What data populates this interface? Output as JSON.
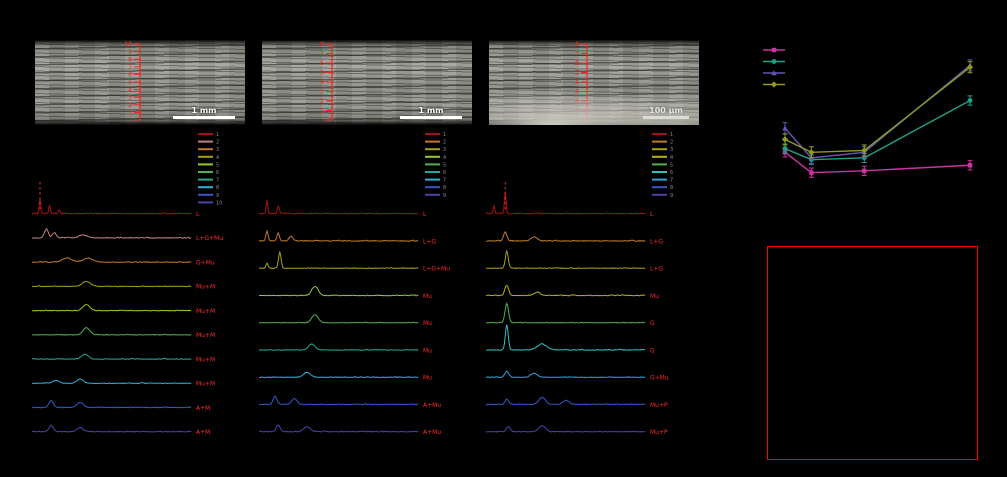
{
  "figure": {
    "background": "#000000",
    "micrographs": [
      {
        "id": "a",
        "scale_bar": "1 mm",
        "ruler_numbers": [
          "10",
          "9",
          "8",
          "7",
          "6",
          "5",
          "4",
          "3",
          "2",
          "1"
        ]
      },
      {
        "id": "b",
        "scale_bar": "1 mm",
        "ruler_numbers": [
          "8",
          "7",
          "6",
          "5",
          "4",
          "3",
          "2",
          "1"
        ]
      },
      {
        "id": "c",
        "scale_bar": "100 μm",
        "ruler_numbers": [
          "8",
          "7",
          "6",
          "5",
          "4",
          "3",
          "2",
          "1"
        ]
      }
    ],
    "spectra_panels": [
      {
        "id": "a",
        "legend_labels": [
          "1",
          "2",
          "3",
          "4",
          "5",
          "6",
          "7",
          "8",
          "9",
          "10"
        ],
        "traces": [
          {
            "color": "#a01414",
            "label": "L",
            "noise": 1.7,
            "marker_line": 0.05,
            "peaks": [
              [
                0.05,
                15,
                0.005
              ],
              [
                0.11,
                8,
                0.005
              ],
              [
                0.17,
                4,
                0.005
              ]
            ]
          },
          {
            "color": "#c08080",
            "label": "L+G+Mu",
            "noise": 1.4,
            "peaks": [
              [
                0.09,
                9,
                0.012
              ],
              [
                0.14,
                5,
                0.012
              ],
              [
                0.32,
                3,
                0.025
              ]
            ]
          },
          {
            "color": "#c07830",
            "label": "G+Mu",
            "noise": 1.2,
            "peaks": [
              [
                0.22,
                4,
                0.03
              ],
              [
                0.35,
                4,
                0.03
              ]
            ]
          },
          {
            "color": "#a8a018",
            "label": "Mu+M",
            "noise": 1.1,
            "peaks": [
              [
                0.34,
                5,
                0.025
              ]
            ]
          },
          {
            "color": "#9ac832",
            "label": "Mu+M",
            "noise": 1.1,
            "peaks": [
              [
                0.34,
                6,
                0.022
              ]
            ]
          },
          {
            "color": "#50b050",
            "label": "Mu+M",
            "noise": 1.1,
            "peaks": [
              [
                0.34,
                7,
                0.02
              ]
            ]
          },
          {
            "color": "#28a890",
            "label": "Mu+M",
            "noise": 1.1,
            "peaks": [
              [
                0.33,
                5,
                0.02
              ]
            ]
          },
          {
            "color": "#30b0d8",
            "label": "Mu+M",
            "noise": 1.1,
            "peaks": [
              [
                0.15,
                3,
                0.02
              ],
              [
                0.3,
                4,
                0.02
              ]
            ]
          },
          {
            "color": "#3858c8",
            "label": "A+M",
            "noise": 1.3,
            "peaks": [
              [
                0.12,
                7,
                0.014
              ],
              [
                0.3,
                5,
                0.02
              ]
            ]
          },
          {
            "color": "#5040a8",
            "label": "A+M",
            "noise": 1.3,
            "peaks": [
              [
                0.12,
                6,
                0.014
              ],
              [
                0.3,
                4,
                0.02
              ]
            ]
          }
        ]
      },
      {
        "id": "b",
        "legend_labels": [
          "1",
          "2",
          "3",
          "4",
          "5",
          "6",
          "7",
          "8",
          "9"
        ],
        "traces": [
          {
            "color": "#a01414",
            "label": "L",
            "noise": 1.7,
            "peaks": [
              [
                0.05,
                13,
                0.005
              ],
              [
                0.12,
                7,
                0.006
              ]
            ]
          },
          {
            "color": "#c07830",
            "label": "L+G",
            "noise": 1.4,
            "peaks": [
              [
                0.05,
                10,
                0.007
              ],
              [
                0.12,
                8,
                0.008
              ],
              [
                0.2,
                5,
                0.012
              ]
            ]
          },
          {
            "color": "#a8a018",
            "label": "L+G+Mu",
            "noise": 1.2,
            "peaks": [
              [
                0.05,
                5,
                0.006
              ],
              [
                0.13,
                16,
                0.008
              ]
            ]
          },
          {
            "color": "#9ac832",
            "label": "Mu",
            "noise": 1.1,
            "peaks": [
              [
                0.35,
                9,
                0.02
              ]
            ]
          },
          {
            "color": "#50b050",
            "label": "Mu",
            "noise": 1.1,
            "peaks": [
              [
                0.35,
                8,
                0.02
              ]
            ]
          },
          {
            "color": "#28a890",
            "label": "Mu",
            "noise": 1.1,
            "peaks": [
              [
                0.33,
                6,
                0.02
              ]
            ]
          },
          {
            "color": "#30b0d8",
            "label": "Mu",
            "noise": 1.1,
            "peaks": [
              [
                0.3,
                5,
                0.02
              ]
            ]
          },
          {
            "color": "#3858c8",
            "label": "A+Mu",
            "noise": 1.3,
            "peaks": [
              [
                0.1,
                8,
                0.012
              ],
              [
                0.22,
                6,
                0.016
              ]
            ]
          },
          {
            "color": "#5040a8",
            "label": "A+Mu",
            "noise": 1.3,
            "peaks": [
              [
                0.12,
                7,
                0.012
              ],
              [
                0.3,
                5,
                0.02
              ]
            ]
          }
        ]
      },
      {
        "id": "c",
        "legend_labels": [
          "1",
          "2",
          "3",
          "4",
          "5",
          "6",
          "7",
          "8",
          "9"
        ],
        "traces": [
          {
            "color": "#a01414",
            "label": "L",
            "noise": 1.7,
            "marker_line": 0.12,
            "peaks": [
              [
                0.05,
                8,
                0.005
              ],
              [
                0.12,
                22,
                0.005
              ]
            ]
          },
          {
            "color": "#c07830",
            "label": "L+G",
            "noise": 1.4,
            "peaks": [
              [
                0.12,
                9,
                0.01
              ],
              [
                0.3,
                4,
                0.02
              ]
            ]
          },
          {
            "color": "#a8a018",
            "label": "L+G",
            "noise": 1.2,
            "peaks": [
              [
                0.13,
                17,
                0.009
              ]
            ]
          },
          {
            "color": "#b8b020",
            "label": "Mu",
            "noise": 1.2,
            "peaks": [
              [
                0.13,
                10,
                0.012
              ],
              [
                0.32,
                3,
                0.02
              ]
            ]
          },
          {
            "color": "#50b050",
            "label": "G",
            "noise": 1.2,
            "peaks": [
              [
                0.13,
                19,
                0.011
              ]
            ]
          },
          {
            "color": "#30c0c0",
            "label": "G",
            "noise": 1.2,
            "peaks": [
              [
                0.13,
                25,
                0.009
              ],
              [
                0.35,
                6,
                0.03
              ]
            ]
          },
          {
            "color": "#30a0d8",
            "label": "G+Mu",
            "noise": 1.1,
            "peaks": [
              [
                0.13,
                6,
                0.012
              ],
              [
                0.3,
                4,
                0.02
              ]
            ]
          },
          {
            "color": "#3858c8",
            "label": "Mu+P",
            "noise": 1.3,
            "peaks": [
              [
                0.13,
                5,
                0.012
              ],
              [
                0.35,
                7,
                0.02
              ],
              [
                0.5,
                4,
                0.02
              ]
            ]
          },
          {
            "color": "#5040a8",
            "label": "Mu+P",
            "noise": 1.3,
            "peaks": [
              [
                0.14,
                5,
                0.012
              ],
              [
                0.35,
                6,
                0.02
              ]
            ]
          }
        ]
      }
    ],
    "line_chart": {
      "x": [
        0,
        1,
        3,
        7
      ],
      "series": [
        {
          "color": "#cc33a0",
          "marker": "square",
          "values": [
            42,
            31,
            32,
            35
          ],
          "err": 2.5
        },
        {
          "color": "#20a08a",
          "marker": "circle",
          "values": [
            44,
            38,
            39,
            70
          ],
          "err": 2.5
        },
        {
          "color": "#6655b0",
          "marker": "triangle",
          "values": [
            55,
            39,
            42,
            89
          ],
          "err": 3
        },
        {
          "color": "#909a20",
          "marker": "diamond",
          "values": [
            49,
            42,
            43,
            88
          ],
          "err": 3
        }
      ],
      "legend_labels": [
        "",
        "",
        "",
        ""
      ]
    }
  },
  "chart_data": {
    "type": "line",
    "x": [
      0,
      1,
      3,
      7
    ],
    "series": [
      {
        "name": "series-magenta",
        "values": [
          42,
          31,
          32,
          35
        ]
      },
      {
        "name": "series-teal",
        "values": [
          44,
          38,
          39,
          70
        ]
      },
      {
        "name": "series-violet",
        "values": [
          55,
          39,
          42,
          89
        ]
      },
      {
        "name": "series-olive",
        "values": [
          49,
          42,
          43,
          88
        ]
      }
    ],
    "title": "",
    "xlabel": "",
    "ylabel": "",
    "ylim": [
      0,
      100
    ],
    "legend_position": "top-left",
    "grid": false
  }
}
